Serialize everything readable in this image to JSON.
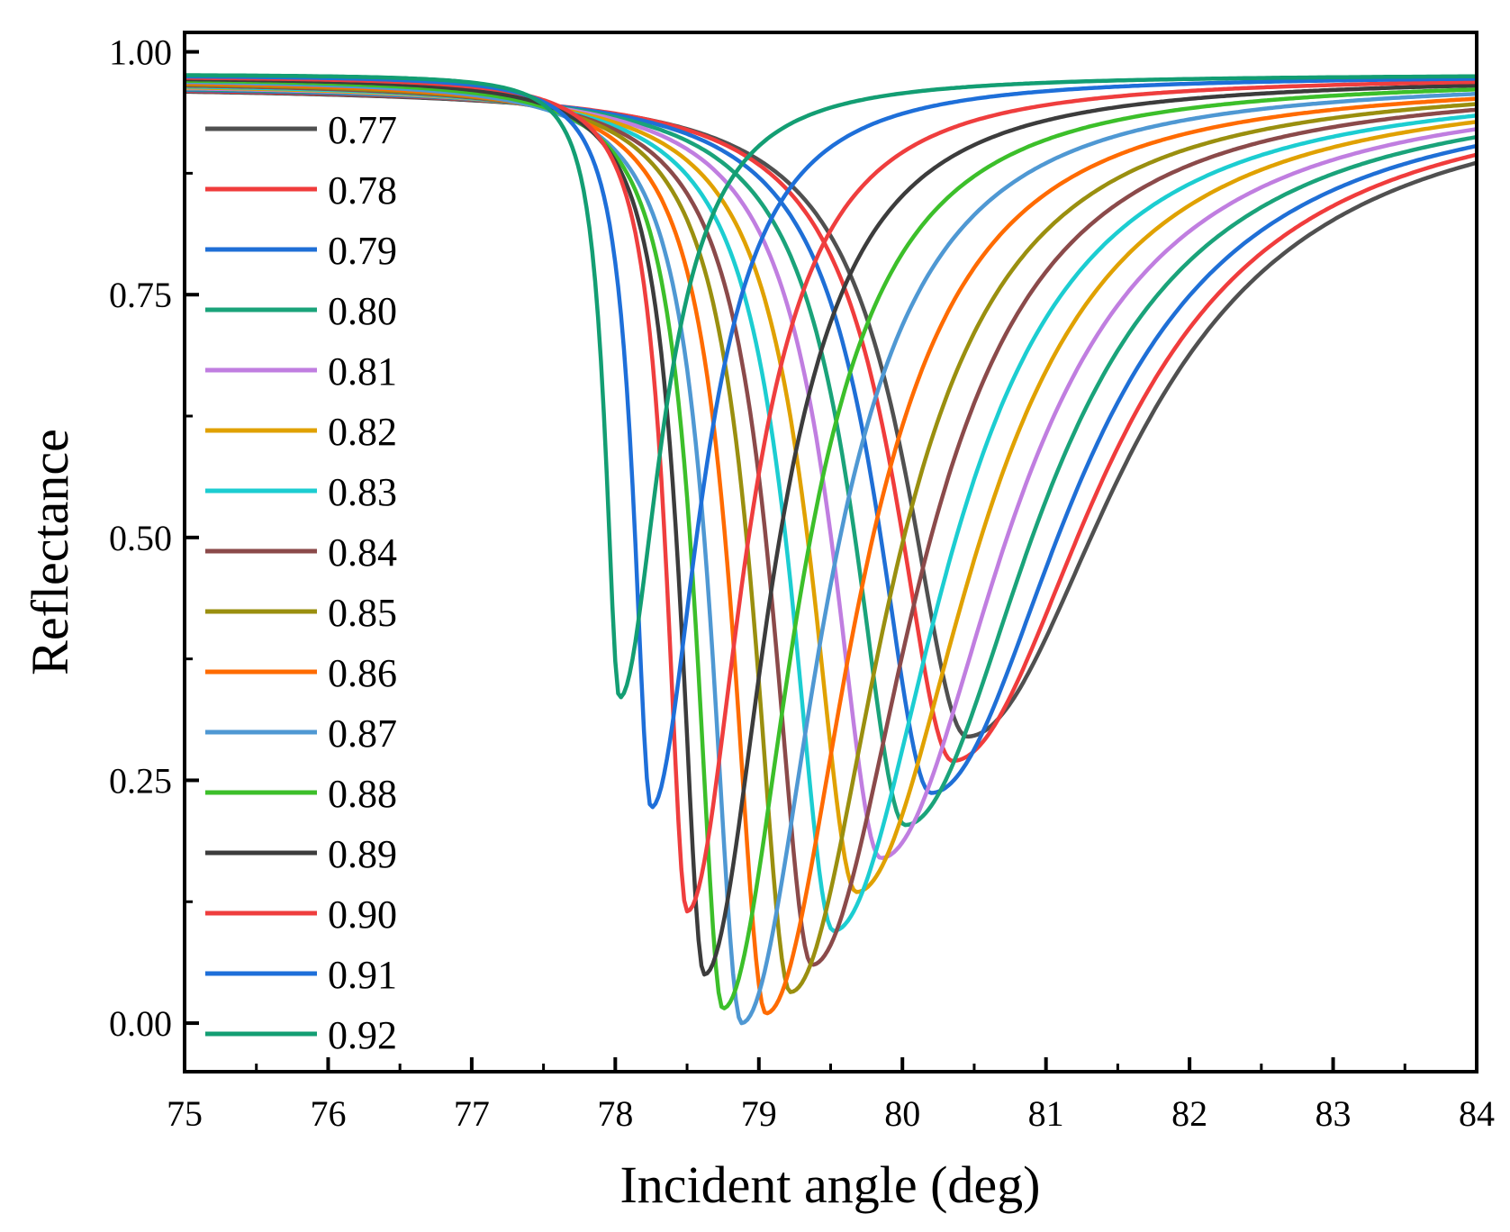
{
  "chart_data": {
    "type": "line",
    "title": "",
    "xlabel": "Incident angle (deg)",
    "ylabel": "Reflectance",
    "xlim": [
      75,
      84
    ],
    "ylim": [
      -0.05,
      1.02
    ],
    "xticks": [
      "75",
      "76",
      "77",
      "78",
      "79",
      "80",
      "81",
      "82",
      "83",
      "84"
    ],
    "yticks": [
      "0.00",
      "0.25",
      "0.50",
      "0.75",
      "1.00"
    ],
    "grid": false,
    "legend_position": "top-left",
    "series": [
      {
        "name": "0.77",
        "color": "#505050",
        "min_x": 80.45,
        "min_y": 0.295,
        "end_y": 0.843
      },
      {
        "name": "0.78",
        "color": "#f03c3c",
        "min_x": 80.35,
        "min_y": 0.27,
        "end_y": 0.858
      },
      {
        "name": "0.79",
        "color": "#1f6fd6",
        "min_x": 80.2,
        "min_y": 0.237,
        "end_y": 0.877
      },
      {
        "name": "0.80",
        "color": "#1aa37a",
        "min_x": 80.02,
        "min_y": 0.204,
        "end_y": 0.897
      },
      {
        "name": "0.81",
        "color": "#c07ee0",
        "min_x": 79.85,
        "min_y": 0.17,
        "end_y": 0.912
      },
      {
        "name": "0.82",
        "color": "#e0a100",
        "min_x": 79.68,
        "min_y": 0.135,
        "end_y": 0.924
      },
      {
        "name": "0.83",
        "color": "#1ccdd1",
        "min_x": 79.52,
        "min_y": 0.095,
        "end_y": 0.934
      },
      {
        "name": "0.84",
        "color": "#8b4a4a",
        "min_x": 79.37,
        "min_y": 0.06,
        "end_y": 0.942
      },
      {
        "name": "0.85",
        "color": "#9a8f0f",
        "min_x": 79.22,
        "min_y": 0.032,
        "end_y": 0.949
      },
      {
        "name": "0.86",
        "color": "#ff6b00",
        "min_x": 79.05,
        "min_y": 0.01,
        "end_y": 0.955
      },
      {
        "name": "0.87",
        "color": "#4f98d3",
        "min_x": 78.88,
        "min_y": 0.0,
        "end_y": 0.96
      },
      {
        "name": "0.88",
        "color": "#3cbf2a",
        "min_x": 78.75,
        "min_y": 0.015,
        "end_y": 0.964
      },
      {
        "name": "0.89",
        "color": "#3c3c3c",
        "min_x": 78.62,
        "min_y": 0.05,
        "end_y": 0.967
      },
      {
        "name": "0.90",
        "color": "#ef3e3e",
        "min_x": 78.5,
        "min_y": 0.115,
        "end_y": 0.97
      },
      {
        "name": "0.91",
        "color": "#1e6fd9",
        "min_x": 78.25,
        "min_y": 0.222,
        "end_y": 0.973
      },
      {
        "name": "0.92",
        "color": "#139e73",
        "min_x": 78.03,
        "min_y": 0.335,
        "end_y": 0.976
      }
    ]
  }
}
